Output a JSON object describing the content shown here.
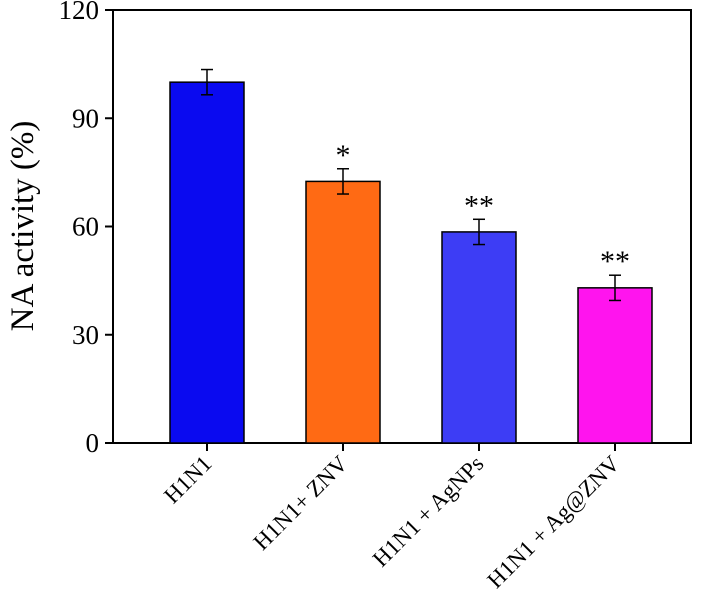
{
  "chart_data": {
    "type": "bar",
    "title": "",
    "xlabel": "",
    "ylabel": "NA  activity (%)",
    "ylim": [
      0,
      120
    ],
    "yticks": [
      0,
      30,
      60,
      90,
      120
    ],
    "categories": [
      "H1N1",
      "H1N1+ ZNV",
      "H1N1 + AgNPs",
      "H1N1 + Ag@ZNV"
    ],
    "values": [
      100,
      72.5,
      58.5,
      43
    ],
    "errors": [
      3.5,
      3.5,
      3.5,
      3.5
    ],
    "significance": [
      "",
      "*",
      "**",
      "**"
    ],
    "colors": [
      "#0a0af0",
      "#ff6a14",
      "#3d3df5",
      "#ff14ee"
    ],
    "grid": false,
    "legend": "none"
  }
}
